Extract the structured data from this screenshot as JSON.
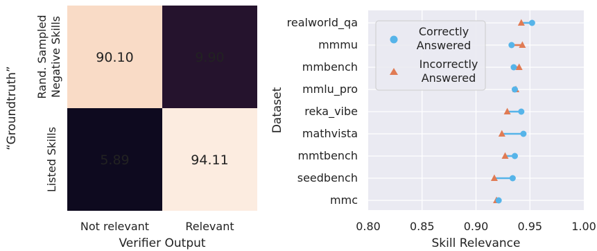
{
  "chart_data": [
    {
      "type": "heatmap",
      "xlabel": "Verifier Output",
      "ylabel": "“Groundtruth”",
      "x_categories": [
        "Not relevant",
        "Relevant"
      ],
      "y_categories": [
        [
          "Rand. Sampled",
          "Negative Skills"
        ],
        [
          "Listed Skills"
        ]
      ],
      "values": [
        [
          90.1,
          9.9
        ],
        [
          5.89,
          94.11
        ]
      ],
      "cell_labels": [
        [
          "90.10",
          "9.90"
        ],
        [
          "5.89",
          "94.11"
        ]
      ],
      "colors": {
        "high": "#fcece0",
        "mid_high": "#f9dbc6",
        "low": "#25132d",
        "lowest": "#0e0a1f"
      }
    },
    {
      "type": "scatter",
      "xlabel": "Skill Relevance",
      "ylabel": "Dataset",
      "xlim": [
        0.8,
        1.0
      ],
      "xticks": [
        "0.80",
        "0.85",
        "0.90",
        "0.95",
        "1.00"
      ],
      "tick_values": [
        0.8,
        0.85,
        0.9,
        0.95,
        1.0
      ],
      "categories": [
        "realworld_qa",
        "mmmu",
        "mmbench",
        "mmlu_pro",
        "reka_vibe",
        "mathvista",
        "mmtbench",
        "seedbench",
        "mmc"
      ],
      "series": [
        {
          "name": "Correctly Answered",
          "marker": "circle",
          "color": "#56b4e9",
          "values": [
            0.952,
            0.933,
            0.935,
            0.936,
            0.942,
            0.944,
            0.936,
            0.934,
            0.921
          ]
        },
        {
          "name": "Incorrectly Answered",
          "marker": "triangle",
          "color": "#e07b54",
          "values": [
            0.942,
            0.943,
            0.94,
            0.937,
            0.929,
            0.924,
            0.927,
            0.917,
            0.919
          ]
        }
      ],
      "legend": {
        "position": "top-left",
        "entries": [
          [
            "Correctly",
            "Answered"
          ],
          [
            "Incorrectly",
            "Answered"
          ]
        ]
      },
      "grid": true,
      "background": "#eaeaf2"
    }
  ]
}
